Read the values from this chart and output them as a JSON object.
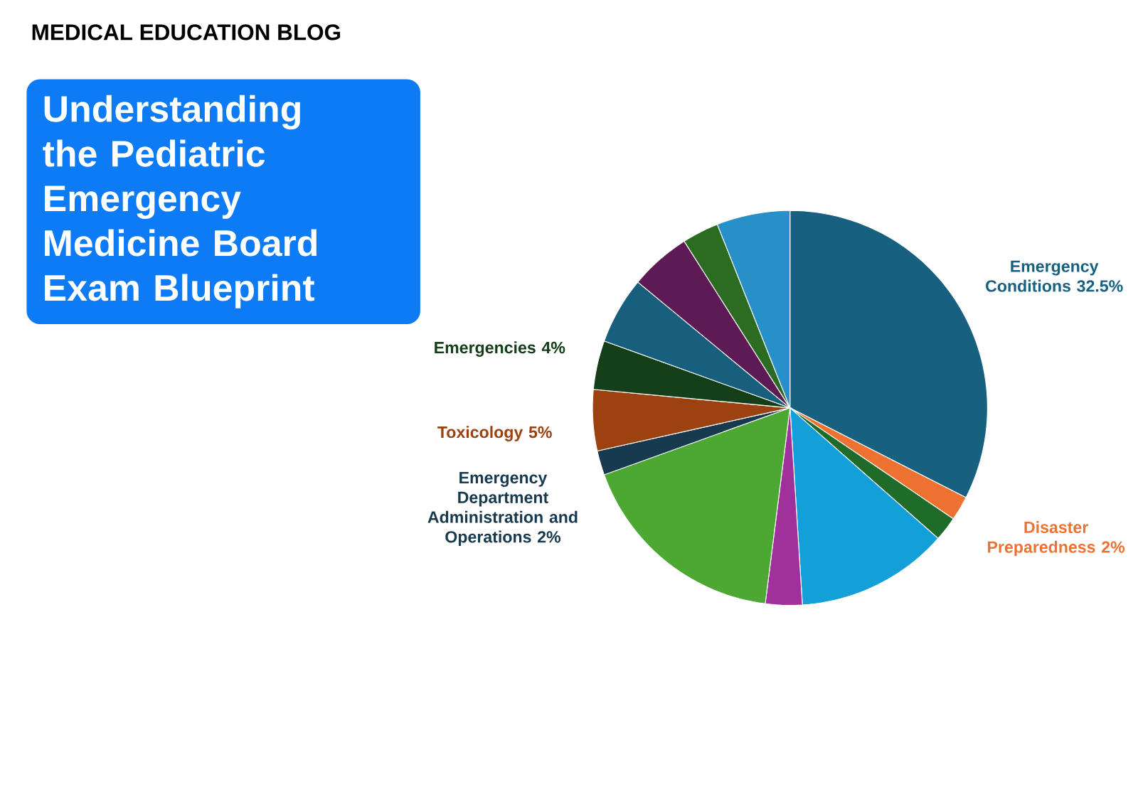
{
  "chart_data": {
    "type": "pie",
    "title": "Understanding the Pediatric Emergency Medicine Board Exam Blueprint",
    "subtitle": "MEDICAL EDUCATION BLOG",
    "categories": [
      "Emergency Conditions",
      "Disaster Preparedness",
      null,
      null,
      null,
      null,
      "Emergency Department Administration and Operations",
      "Toxicology",
      "Emergencies",
      null,
      null,
      null,
      null
    ],
    "values": [
      32.5,
      2,
      2,
      12.5,
      3,
      17.5,
      2,
      5,
      4,
      5.5,
      5,
      3,
      6
    ],
    "value_labels": [
      "32.5%",
      "2%",
      null,
      null,
      null,
      null,
      "2%",
      "5%",
      "4%",
      null,
      null,
      null,
      null
    ],
    "colors": [
      "#17607f",
      "#ed7231",
      "#1e6b2a",
      "#13a0d8",
      "#a0309a",
      "#4da833",
      "#173a4f",
      "#9c4211",
      "#143f18",
      "#175f7c",
      "#5e1a55",
      "#2c6b22",
      "#2790c8"
    ]
  }
}
